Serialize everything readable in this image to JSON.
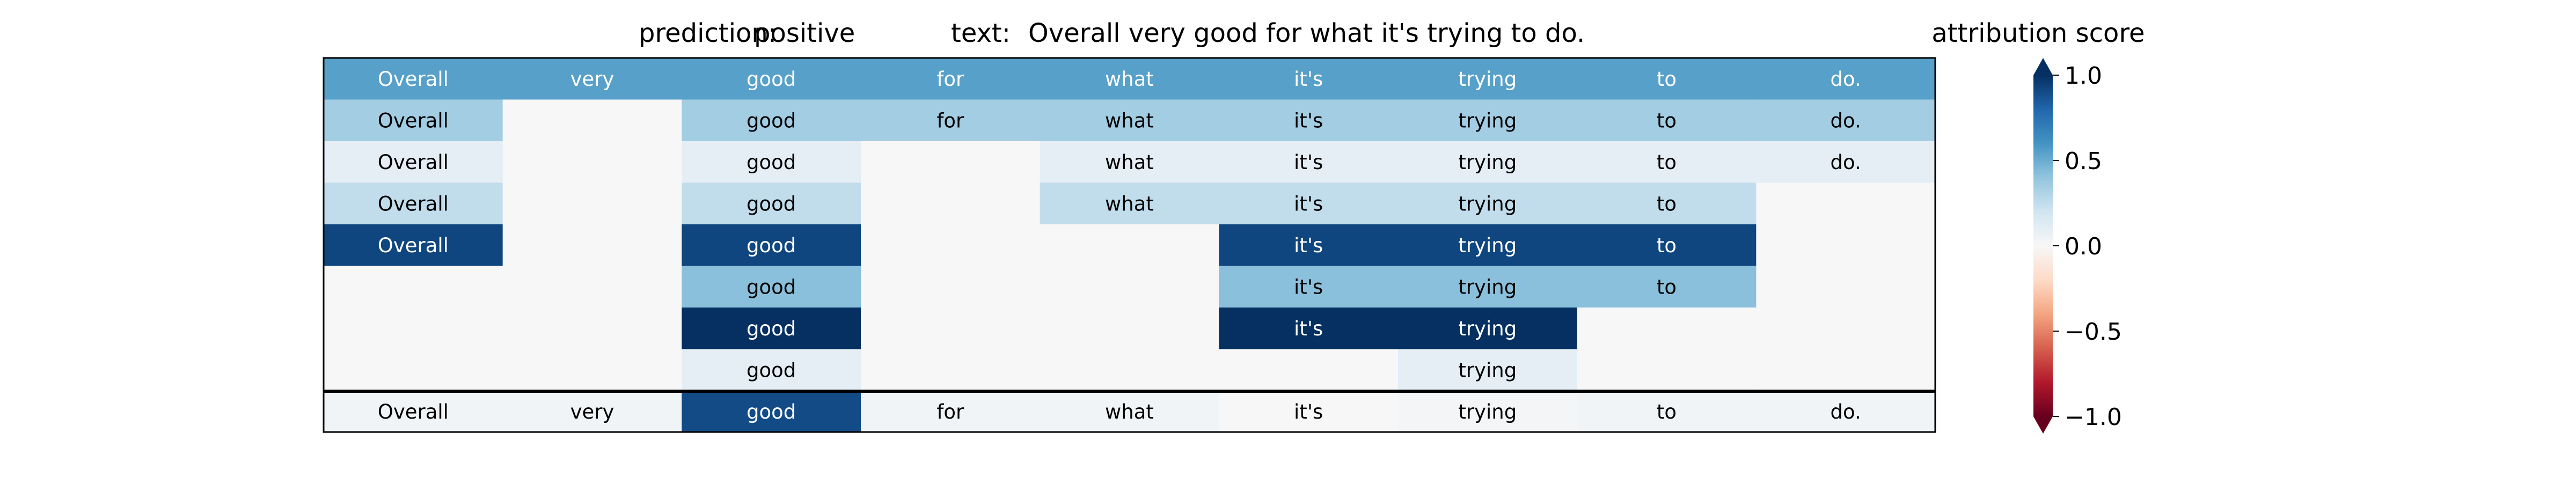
{
  "chart_data": {
    "type": "heatmap",
    "header": {
      "prediction_label": "prediction:",
      "prediction_value": "positive",
      "text_label": "text:",
      "text_value": "Overall very good for what it's trying to do."
    },
    "tokens": [
      "Overall",
      "very",
      "good",
      "for",
      "what",
      "it's",
      "trying",
      "to",
      "do."
    ],
    "rows": [
      {
        "values": [
          0.55,
          0.55,
          0.55,
          0.55,
          0.55,
          0.55,
          0.55,
          0.55,
          0.55
        ],
        "shown": [
          true,
          true,
          true,
          true,
          true,
          true,
          true,
          true,
          true
        ]
      },
      {
        "values": [
          0.35,
          0.0,
          0.35,
          0.35,
          0.35,
          0.35,
          0.35,
          0.35,
          0.35
        ],
        "shown": [
          true,
          false,
          true,
          true,
          true,
          true,
          true,
          true,
          true
        ]
      },
      {
        "values": [
          0.1,
          0.0,
          0.1,
          0.0,
          0.1,
          0.1,
          0.1,
          0.1,
          0.1
        ],
        "shown": [
          true,
          false,
          true,
          false,
          true,
          true,
          true,
          true,
          true
        ]
      },
      {
        "values": [
          0.25,
          0.0,
          0.25,
          0.0,
          0.25,
          0.25,
          0.25,
          0.25,
          0.0
        ],
        "shown": [
          true,
          false,
          true,
          false,
          true,
          true,
          true,
          true,
          false
        ]
      },
      {
        "values": [
          0.92,
          0.0,
          0.92,
          0.0,
          0.0,
          0.92,
          0.92,
          0.92,
          0.0
        ],
        "shown": [
          true,
          false,
          true,
          false,
          false,
          true,
          true,
          true,
          false
        ]
      },
      {
        "values": [
          0.0,
          0.0,
          0.42,
          0.0,
          0.0,
          0.42,
          0.42,
          0.42,
          0.0
        ],
        "shown": [
          false,
          false,
          true,
          false,
          false,
          true,
          true,
          true,
          false
        ]
      },
      {
        "values": [
          0.0,
          0.0,
          1.0,
          0.0,
          0.0,
          1.0,
          1.0,
          0.0,
          0.0
        ],
        "shown": [
          false,
          false,
          true,
          false,
          false,
          true,
          true,
          false,
          false
        ]
      },
      {
        "values": [
          0.0,
          0.0,
          0.1,
          0.0,
          0.0,
          0.0,
          0.1,
          0.0,
          0.0
        ],
        "shown": [
          false,
          false,
          true,
          false,
          false,
          false,
          true,
          false,
          false
        ]
      }
    ],
    "summary_row": {
      "values": [
        0.03,
        0.03,
        0.9,
        0.03,
        0.03,
        0.0,
        0.02,
        0.03,
        0.03
      ],
      "shown": [
        true,
        true,
        true,
        true,
        true,
        true,
        true,
        true,
        true
      ]
    },
    "colorbar": {
      "title": "attribution score",
      "range": [
        -1.0,
        1.0
      ],
      "ticks": [
        1.0,
        0.5,
        0.0,
        -0.5,
        -1.0
      ],
      "tick_labels": [
        "1.0",
        "0.5",
        "0.0",
        "−0.5",
        "−1.0"
      ],
      "colormap": "RdBu",
      "extend": "both"
    }
  }
}
